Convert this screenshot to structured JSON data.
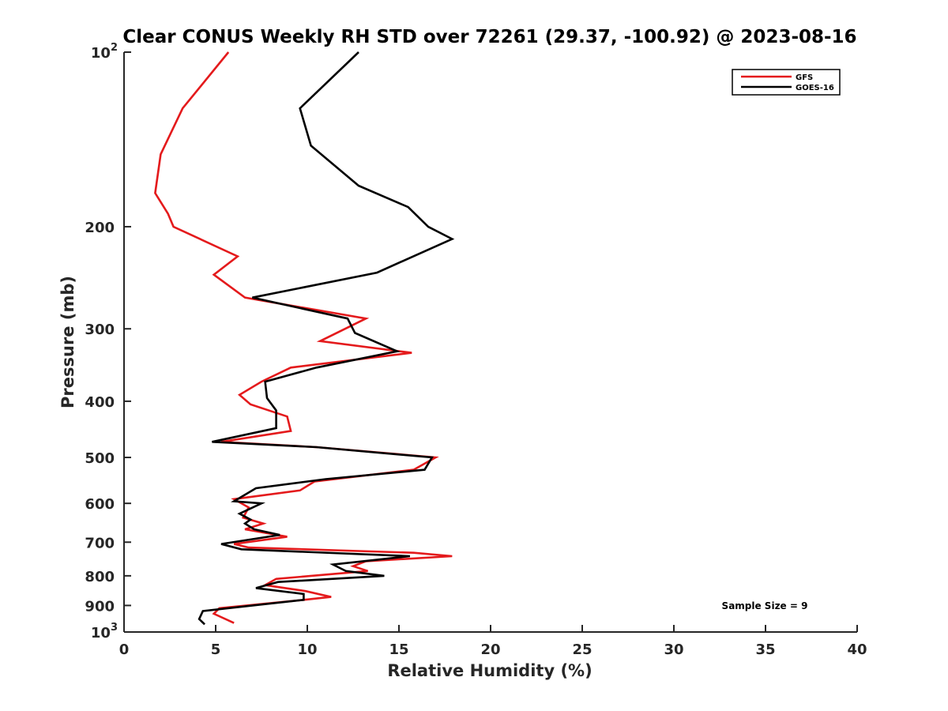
{
  "chart_data": {
    "type": "line",
    "title": "Clear CONUS Weekly RH STD over 72261 (29.37, -100.92) @ 2023-08-16",
    "xlabel": "Relative Humidity (%)",
    "ylabel": "Pressure (mb)",
    "xlim": [
      0,
      40
    ],
    "ylim": [
      1000,
      100
    ],
    "y_scale": "log",
    "y_reversed": true,
    "grid": false,
    "x_ticks": [
      0,
      5,
      10,
      15,
      20,
      25,
      30,
      35,
      40
    ],
    "y_ticks": [
      100,
      200,
      300,
      400,
      500,
      600,
      700,
      800,
      900,
      1000
    ],
    "x_tick_labels": [
      "0",
      "5",
      "10",
      "15",
      "20",
      "25",
      "30",
      "35",
      "40"
    ],
    "y_tick_labels": [
      {
        "base": "10",
        "exp": "2"
      },
      {
        "base": "200",
        "exp": ""
      },
      {
        "base": "300",
        "exp": ""
      },
      {
        "base": "400",
        "exp": ""
      },
      {
        "base": "500",
        "exp": ""
      },
      {
        "base": "600",
        "exp": ""
      },
      {
        "base": "700",
        "exp": ""
      },
      {
        "base": "800",
        "exp": ""
      },
      {
        "base": "900",
        "exp": ""
      },
      {
        "base": "10",
        "exp": "3"
      }
    ],
    "legend_position": "top-right",
    "annotation": "Sample Size = 9",
    "series": [
      {
        "name": "GFS",
        "color": "#e41a1c",
        "points": [
          [
            5.7,
            100
          ],
          [
            3.2,
            125
          ],
          [
            2.0,
            150
          ],
          [
            1.7,
            175
          ],
          [
            2.4,
            190
          ],
          [
            2.7,
            200
          ],
          [
            6.2,
            225
          ],
          [
            4.9,
            242
          ],
          [
            6.6,
            265
          ],
          [
            13.2,
            288
          ],
          [
            10.7,
            315
          ],
          [
            15.7,
            330
          ],
          [
            9.1,
            350
          ],
          [
            7.5,
            370
          ],
          [
            6.3,
            390
          ],
          [
            6.9,
            405
          ],
          [
            8.9,
            425
          ],
          [
            9.1,
            450
          ],
          [
            5.3,
            470
          ],
          [
            10.5,
            480
          ],
          [
            17.0,
            500
          ],
          [
            15.8,
            525
          ],
          [
            10.4,
            550
          ],
          [
            9.6,
            570
          ],
          [
            6.0,
            590
          ],
          [
            6.8,
            610
          ],
          [
            6.5,
            635
          ],
          [
            7.6,
            650
          ],
          [
            6.6,
            665
          ],
          [
            8.9,
            685
          ],
          [
            6.0,
            705
          ],
          [
            6.8,
            715
          ],
          [
            15.8,
            730
          ],
          [
            17.9,
            740
          ],
          [
            13.2,
            755
          ],
          [
            12.5,
            770
          ],
          [
            13.3,
            785
          ],
          [
            8.3,
            810
          ],
          [
            7.7,
            830
          ],
          [
            9.9,
            850
          ],
          [
            11.3,
            870
          ],
          [
            9.8,
            880
          ],
          [
            5.2,
            910
          ],
          [
            4.9,
            930
          ],
          [
            6.0,
            965
          ]
        ]
      },
      {
        "name": "GOES-16",
        "color": "#000000",
        "points": [
          [
            12.8,
            100
          ],
          [
            9.6,
            125
          ],
          [
            10.2,
            145
          ],
          [
            12.8,
            170
          ],
          [
            15.5,
            185
          ],
          [
            16.6,
            200
          ],
          [
            17.9,
            210
          ],
          [
            13.8,
            240
          ],
          [
            7.0,
            265
          ],
          [
            12.2,
            288
          ],
          [
            12.6,
            305
          ],
          [
            14.9,
            328
          ],
          [
            10.5,
            350
          ],
          [
            7.7,
            370
          ],
          [
            7.8,
            395
          ],
          [
            8.3,
            415
          ],
          [
            8.3,
            445
          ],
          [
            4.8,
            470
          ],
          [
            10.5,
            480
          ],
          [
            16.8,
            500
          ],
          [
            16.4,
            525
          ],
          [
            11.0,
            545
          ],
          [
            7.2,
            565
          ],
          [
            6.0,
            595
          ],
          [
            7.5,
            600
          ],
          [
            6.3,
            625
          ],
          [
            6.9,
            640
          ],
          [
            6.6,
            650
          ],
          [
            7.1,
            665
          ],
          [
            8.5,
            680
          ],
          [
            5.3,
            705
          ],
          [
            6.4,
            720
          ],
          [
            15.6,
            740
          ],
          [
            11.4,
            765
          ],
          [
            12.1,
            785
          ],
          [
            14.2,
            800
          ],
          [
            8.4,
            820
          ],
          [
            7.2,
            840
          ],
          [
            9.8,
            860
          ],
          [
            9.8,
            880
          ],
          [
            4.3,
            920
          ],
          [
            4.1,
            950
          ],
          [
            4.4,
            970
          ]
        ]
      }
    ]
  },
  "colors": {
    "axis": "#262626",
    "gfs": "#e41a1c",
    "goes": "#000000"
  }
}
